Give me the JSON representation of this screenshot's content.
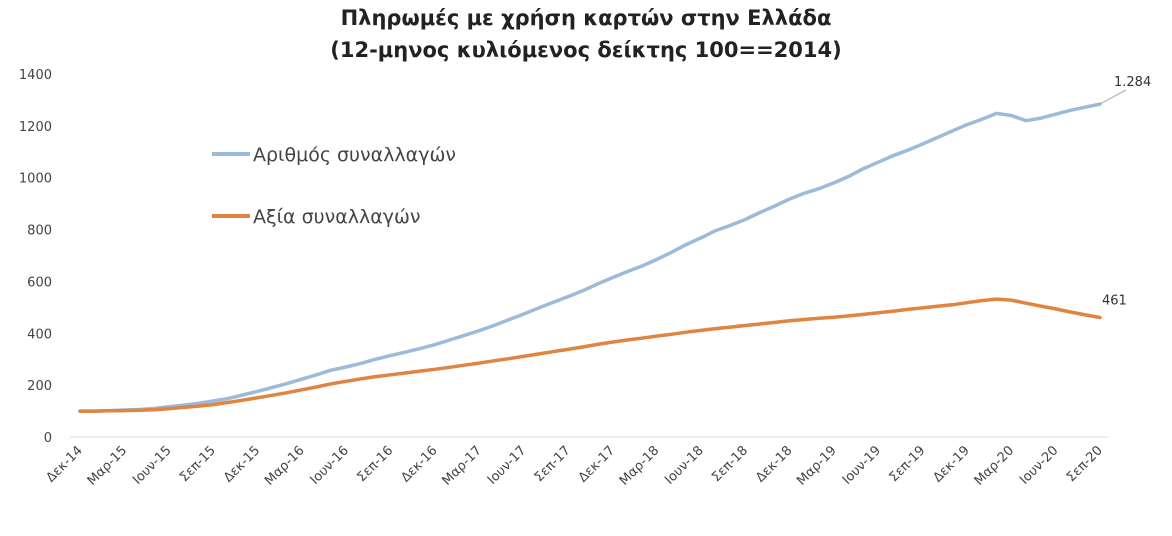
{
  "chart_data": {
    "type": "line",
    "title": "Πληρωμές με χρήση καρτών στην Ελλάδα",
    "subtitle": "(12-μηνος κυλιόμενος δείκτης 100==2014)",
    "xlabel": "",
    "ylabel": "",
    "ylim": [
      0,
      1400
    ],
    "y_ticks": [
      "0",
      "200",
      "400",
      "600",
      "800",
      "1000",
      "1200",
      "1400"
    ],
    "x_tick_labels": [
      "Δεκ-14",
      "Μαρ-15",
      "Ιουν-15",
      "Σεπ-15",
      "Δεκ-15",
      "Μαρ-16",
      "Ιουν-16",
      "Σεπ-16",
      "Δεκ-16",
      "Μαρ-17",
      "Ιουν-17",
      "Σεπ-17",
      "Δεκ-17",
      "Μαρ-18",
      "Ιουν-18",
      "Σεπ-18",
      "Δεκ-18",
      "Μαρ-19",
      "Ιουν-19",
      "Σεπ-19",
      "Δεκ-19",
      "Μαρ-20",
      "Ιουν-20",
      "Σεπ-20"
    ],
    "grid": false,
    "legend_position": "upper-left",
    "series": [
      {
        "name": "Αριθμός συναλλαγών",
        "color": "#9cbad9",
        "values": [
          100,
          100,
          102,
          104,
          106,
          110,
          117,
          123,
          130,
          139,
          148,
          162,
          176,
          191,
          206,
          223,
          240,
          258,
          270,
          284,
          300,
          314,
          327,
          341,
          356,
          374,
          392,
          410,
          430,
          452,
          474,
          497,
          519,
          541,
          564,
          590,
          614,
          637,
          659,
          684,
          712,
          742,
          768,
          796,
          816,
          839,
          866,
          891,
          918,
          940,
          958,
          980,
          1005,
          1035,
          1060,
          1085,
          1106,
          1130,
          1155,
          1180,
          1205,
          1225,
          1248,
          1240,
          1220,
          1230,
          1245,
          1260,
          1272,
          1284
        ],
        "end_label": "1.284"
      },
      {
        "name": "Αξία συναλλαγών",
        "color": "#e0843f",
        "values": [
          100,
          100,
          101,
          102,
          103,
          105,
          109,
          114,
          119,
          125,
          133,
          142,
          151,
          161,
          171,
          182,
          193,
          205,
          215,
          224,
          233,
          240,
          247,
          254,
          261,
          269,
          277,
          285,
          294,
          302,
          311,
          320,
          329,
          338,
          347,
          357,
          366,
          374,
          381,
          389,
          396,
          404,
          411,
          418,
          424,
          430,
          436,
          442,
          448,
          453,
          458,
          462,
          467,
          473,
          479,
          485,
          492,
          498,
          504,
          510,
          518,
          526,
          532,
          528,
          516,
          505,
          494,
          482,
          471,
          461
        ],
        "end_label": "461"
      }
    ]
  }
}
